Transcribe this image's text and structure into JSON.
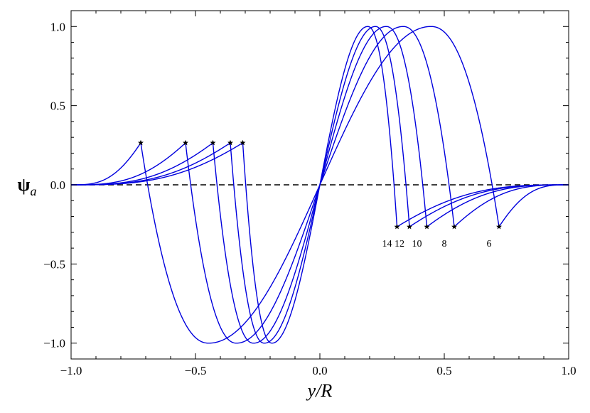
{
  "chart_data": {
    "type": "line",
    "title": "",
    "xlabel": "y/R",
    "ylabel": "ψ_a",
    "xlim": [
      -1.0,
      1.0
    ],
    "ylim": [
      -1.1,
      1.1
    ],
    "xticks": [
      -1.0,
      -0.5,
      0.0,
      0.5,
      1.0
    ],
    "xtick_labels": [
      "−1.0",
      "−0.5",
      "0.0",
      "0.5",
      "1.0"
    ],
    "yticks": [
      -1.0,
      -0.5,
      0.0,
      0.5,
      1.0
    ],
    "ytick_labels": [
      "−1.0",
      "−0.5",
      "0.0",
      "0.5",
      "1.0"
    ],
    "grid": false,
    "legend": "none",
    "line_color": "#0000dd",
    "reference_line": {
      "y": 0.0,
      "style": "dashed",
      "color": "#000000"
    },
    "series": [
      {
        "label": "6",
        "edge": 0.72,
        "x": [
          -1.0,
          -0.9,
          -0.8,
          -0.72,
          -0.72,
          -0.6,
          -0.45,
          -0.3,
          -0.15,
          0.0,
          0.15,
          0.3,
          0.45,
          0.6,
          0.72,
          0.72,
          0.8,
          0.9,
          1.0
        ],
        "y": [
          0.0,
          0.04,
          0.14,
          0.265,
          0.265,
          -0.62,
          -1.0,
          -0.82,
          -0.43,
          0.0,
          0.43,
          0.82,
          1.0,
          0.62,
          -0.265,
          -0.265,
          -0.14,
          -0.04,
          0.0
        ]
      },
      {
        "label": "8",
        "edge": 0.54,
        "x": [
          -1.0,
          -0.8,
          -0.65,
          -0.54,
          -0.54,
          -0.45,
          -0.34,
          -0.22,
          -0.11,
          0.0,
          0.11,
          0.22,
          0.34,
          0.45,
          0.54,
          0.54,
          0.65,
          0.8,
          1.0
        ],
        "y": [
          0.0,
          0.03,
          0.15,
          0.265,
          0.265,
          -0.62,
          -1.0,
          -0.82,
          -0.43,
          0.0,
          0.43,
          0.82,
          1.0,
          0.62,
          -0.265,
          -0.265,
          -0.15,
          -0.03,
          0.0
        ]
      },
      {
        "label": "10",
        "edge": 0.43,
        "x": [
          -1.0,
          -0.8,
          -0.6,
          -0.43,
          -0.43,
          -0.36,
          -0.28,
          -0.18,
          -0.09,
          0.0,
          0.09,
          0.18,
          0.28,
          0.36,
          0.43,
          0.43,
          0.6,
          0.8,
          1.0
        ],
        "y": [
          0.0,
          0.02,
          0.13,
          0.265,
          0.265,
          -0.62,
          -1.0,
          -0.82,
          -0.43,
          0.0,
          0.43,
          0.82,
          1.0,
          0.62,
          -0.265,
          -0.265,
          -0.13,
          -0.02,
          0.0
        ]
      },
      {
        "label": "12",
        "edge": 0.36,
        "x": [
          -1.0,
          -0.8,
          -0.55,
          -0.36,
          -0.36,
          -0.3,
          -0.23,
          -0.15,
          -0.075,
          0.0,
          0.075,
          0.15,
          0.23,
          0.3,
          0.36,
          0.36,
          0.55,
          0.8,
          1.0
        ],
        "y": [
          0.0,
          0.02,
          0.13,
          0.265,
          0.265,
          -0.62,
          -1.0,
          -0.82,
          -0.43,
          0.0,
          0.43,
          0.82,
          1.0,
          0.62,
          -0.265,
          -0.265,
          -0.13,
          -0.02,
          0.0
        ]
      },
      {
        "label": "14",
        "edge": 0.31,
        "x": [
          -1.0,
          -0.8,
          -0.55,
          -0.31,
          -0.31,
          -0.26,
          -0.2,
          -0.13,
          -0.065,
          0.0,
          0.065,
          0.13,
          0.2,
          0.26,
          0.31,
          0.31,
          0.55,
          0.8,
          1.0
        ],
        "y": [
          0.0,
          0.02,
          0.13,
          0.265,
          0.265,
          -0.62,
          -1.0,
          -0.82,
          -0.43,
          0.0,
          0.43,
          0.82,
          1.0,
          0.62,
          -0.265,
          -0.265,
          -0.13,
          -0.02,
          0.0
        ]
      }
    ],
    "annotations": [
      {
        "text": "14",
        "x": 0.31,
        "y": -0.265
      },
      {
        "text": "12",
        "x": 0.36,
        "y": -0.265
      },
      {
        "text": "10",
        "x": 0.43,
        "y": -0.265
      },
      {
        "text": "8",
        "x": 0.54,
        "y": -0.265
      },
      {
        "text": "6",
        "x": 0.72,
        "y": -0.265
      }
    ]
  }
}
